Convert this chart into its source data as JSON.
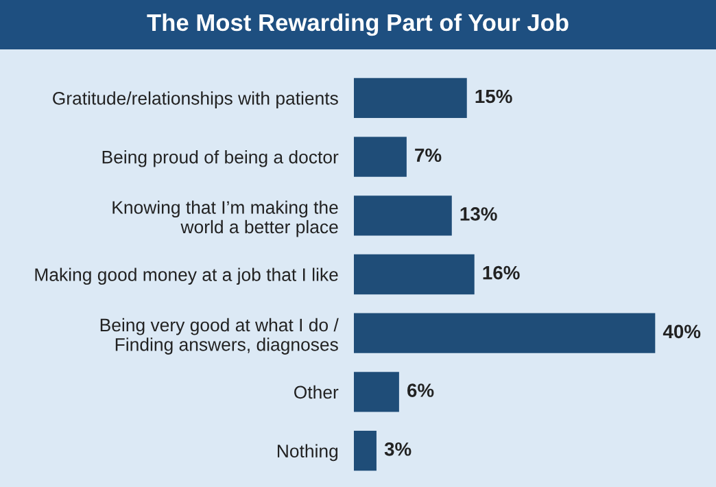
{
  "chart_data": {
    "type": "bar",
    "orientation": "horizontal",
    "title": "The Most Rewarding Part of Your Job",
    "categories": [
      "Gratitude/relationships with patients",
      "Being proud of being a doctor",
      "Knowing that I’m making the\nworld a better place",
      "Making good money at a job that I like",
      "Being very good at what I do /\nFinding answers, diagnoses",
      "Other",
      "Nothing"
    ],
    "values": [
      15,
      7,
      13,
      16,
      40,
      6,
      3
    ],
    "value_labels": [
      "15%",
      "7%",
      "13%",
      "16%",
      "40%",
      "6%",
      "3%"
    ],
    "color": "#1f4d78",
    "grid": false,
    "legend": false
  }
}
